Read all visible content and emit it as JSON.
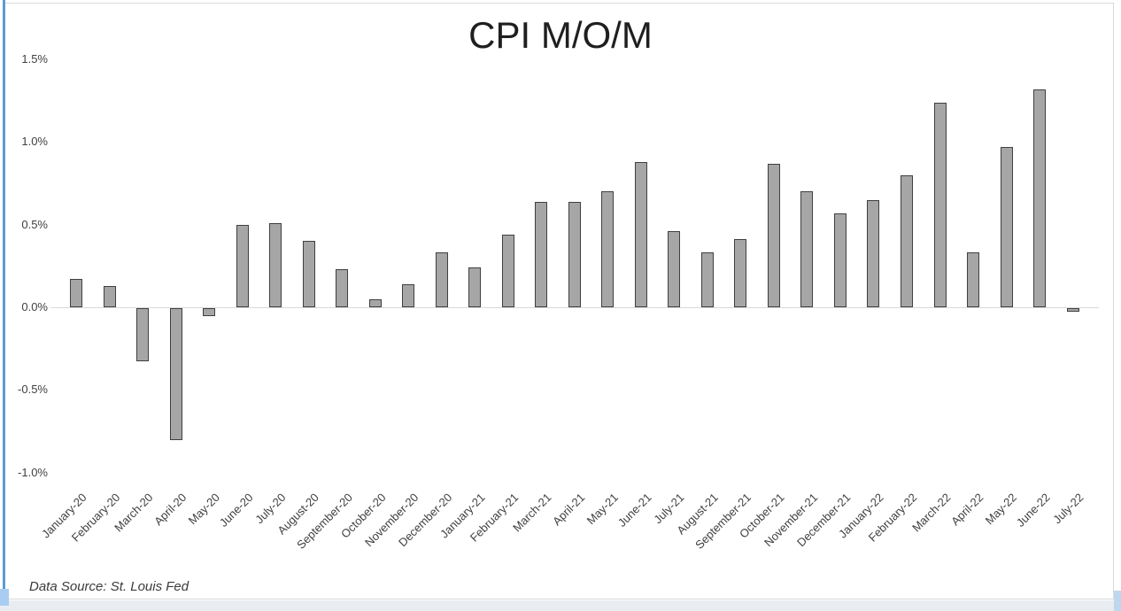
{
  "chart_data": {
    "type": "bar",
    "title": "CPI M/O/M",
    "xlabel": "",
    "ylabel": "",
    "ylim": [
      -1.0,
      1.5
    ],
    "grid": false,
    "zero_line": true,
    "legend": "none",
    "source_note": "Data Source: St. Louis Fed",
    "categories": [
      "January-20",
      "February-20",
      "March-20",
      "April-20",
      "May-20",
      "June-20",
      "July-20",
      "August-20",
      "September-20",
      "October-20",
      "November-20",
      "December-20",
      "January-21",
      "February-21",
      "March-21",
      "April-21",
      "May-21",
      "June-21",
      "July-21",
      "August-21",
      "September-21",
      "October-21",
      "November-21",
      "December-21",
      "January-22",
      "February-22",
      "March-22",
      "April-22",
      "May-22",
      "June-22",
      "July-22"
    ],
    "values": [
      0.17,
      0.13,
      -0.32,
      -0.8,
      -0.05,
      0.5,
      0.51,
      0.4,
      0.23,
      0.05,
      0.14,
      0.33,
      0.24,
      0.44,
      0.64,
      0.64,
      0.7,
      0.88,
      0.46,
      0.33,
      0.41,
      0.87,
      0.7,
      0.57,
      0.65,
      0.8,
      1.24,
      0.33,
      0.97,
      1.32,
      -0.02
    ],
    "yticks": [
      {
        "label": "1.5%",
        "value": 1.5
      },
      {
        "label": "1.0%",
        "value": 1.0
      },
      {
        "label": "0.5%",
        "value": 0.5
      },
      {
        "label": "0.0%",
        "value": 0.0
      },
      {
        "label": "-0.5%",
        "value": -0.5
      },
      {
        "label": "-1.0%",
        "value": -1.0
      }
    ]
  },
  "colors": {
    "bar_fill": "#a6a6a6",
    "bar_border": "#3f3f3f",
    "axis_line": "#d9d9d9",
    "chart_border": "#d9d9d9",
    "tick_text": "#404040",
    "title_text": "#1f1f1f",
    "left_edge_blue": "#5b9bd5",
    "corner_blue_light": "#a8cdf0",
    "corner_blue_pale": "#bdd7ee",
    "bottom_strip": "#e9edf2"
  }
}
